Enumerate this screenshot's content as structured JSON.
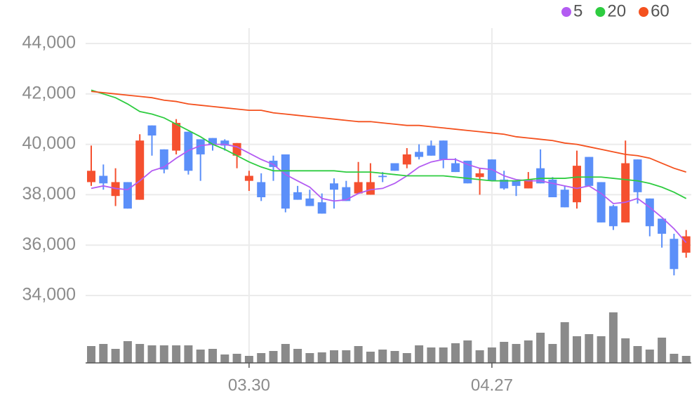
{
  "chart_data": {
    "type": "candlestick",
    "categories": [
      null,
      null,
      null,
      null,
      null,
      null,
      null,
      null,
      null,
      null,
      null,
      null,
      null,
      "03.30",
      null,
      null,
      null,
      null,
      null,
      null,
      null,
      null,
      null,
      null,
      null,
      null,
      null,
      null,
      null,
      null,
      null,
      null,
      null,
      "04.27",
      null,
      null,
      null,
      null,
      null,
      null,
      null,
      null,
      null,
      null,
      null,
      null,
      null,
      null,
      null,
      null
    ],
    "open": [
      38500,
      38750,
      37950,
      38500,
      37800,
      40750,
      39800,
      39750,
      40500,
      40200,
      40250,
      40150,
      39550,
      38550,
      38500,
      39350,
      39600,
      38100,
      37850,
      37700,
      38450,
      38300,
      38050,
      38000,
      38750,
      39250,
      39200,
      39700,
      39950,
      40150,
      39250,
      39350,
      38700,
      39400,
      38600,
      38550,
      38250,
      39050,
      38600,
      38200,
      37700,
      39500,
      38500,
      37550,
      36900,
      39400,
      37850,
      37050,
      36250,
      35700
    ],
    "high": [
      39950,
      39200,
      39050,
      38500,
      40400,
      40750,
      39800,
      41000,
      40500,
      40200,
      40250,
      40200,
      40050,
      38950,
      38850,
      39550,
      39600,
      38350,
      38200,
      38050,
      38650,
      38550,
      39300,
      39250,
      38900,
      39250,
      39850,
      40000,
      40150,
      40150,
      39450,
      39350,
      39050,
      39400,
      38950,
      38550,
      38900,
      39800,
      38700,
      38350,
      39750,
      39500,
      38500,
      37600,
      40150,
      39400,
      37850,
      37050,
      36450,
      36600
    ],
    "low": [
      38350,
      38200,
      37550,
      37450,
      37800,
      39550,
      38850,
      39600,
      38800,
      38550,
      39750,
      39750,
      39050,
      38150,
      37750,
      38550,
      37300,
      37800,
      37550,
      37250,
      37450,
      37750,
      38050,
      38000,
      38500,
      38950,
      39050,
      39400,
      39550,
      39050,
      38900,
      38450,
      38000,
      38550,
      38200,
      37950,
      38250,
      38450,
      37900,
      37500,
      37450,
      38350,
      36900,
      36600,
      36900,
      37650,
      36350,
      35900,
      34800,
      35500
    ],
    "close": [
      38950,
      38450,
      38500,
      37450,
      40150,
      40350,
      39000,
      40850,
      38950,
      39600,
      40000,
      39950,
      40050,
      38750,
      37900,
      39100,
      37450,
      37800,
      37550,
      37250,
      38200,
      37750,
      38500,
      38500,
      38700,
      38950,
      39600,
      39500,
      39550,
      39400,
      38900,
      38450,
      38850,
      38550,
      38250,
      38350,
      38600,
      38450,
      37900,
      37500,
      39150,
      38350,
      36900,
      36750,
      39250,
      38100,
      36750,
      36450,
      35050,
      36350
    ],
    "up_color": "#f5502f",
    "down_color": "#5b8ff9",
    "series": [
      {
        "name": "5",
        "color": "#b35cf2",
        "values": [
          38250,
          38350,
          38250,
          38200,
          38550,
          38950,
          39100,
          39450,
          39750,
          39950,
          40000,
          40000,
          39900,
          39650,
          39400,
          39200,
          38800,
          38550,
          38300,
          37850,
          37750,
          37800,
          38050,
          38200,
          38250,
          38450,
          38750,
          39100,
          39300,
          39400,
          39400,
          39200,
          39050,
          39000,
          38750,
          38600,
          38550,
          38550,
          38450,
          38350,
          38250,
          38350,
          38050,
          37650,
          37700,
          37850,
          37500,
          37100,
          36650,
          36100
        ]
      },
      {
        "name": "20",
        "color": "#2ecc40",
        "values": [
          42150,
          42000,
          41850,
          41600,
          41300,
          41200,
          41050,
          40800,
          40550,
          40300,
          40000,
          39800,
          39550,
          39300,
          39100,
          38950,
          38950,
          38950,
          38950,
          38950,
          38950,
          38900,
          38900,
          38900,
          38850,
          38800,
          38750,
          38750,
          38750,
          38750,
          38700,
          38650,
          38600,
          38550,
          38550,
          38550,
          38600,
          38650,
          38650,
          38650,
          38700,
          38700,
          38700,
          38650,
          38600,
          38550,
          38450,
          38300,
          38100,
          37850
        ]
      },
      {
        "name": "60",
        "color": "#f4511e",
        "values": [
          42100,
          42050,
          42000,
          41950,
          41900,
          41850,
          41750,
          41700,
          41600,
          41550,
          41500,
          41450,
          41400,
          41350,
          41350,
          41250,
          41200,
          41150,
          41100,
          41050,
          41000,
          40950,
          40900,
          40900,
          40850,
          40800,
          40750,
          40750,
          40700,
          40650,
          40600,
          40550,
          40500,
          40450,
          40400,
          40300,
          40250,
          40200,
          40150,
          40050,
          40000,
          39900,
          39800,
          39700,
          39600,
          39550,
          39450,
          39250,
          39050,
          38900
        ]
      }
    ],
    "volume": [
      24,
      27,
      20,
      31,
      27,
      25,
      25,
      25,
      25,
      19,
      20,
      12,
      13,
      10,
      14,
      17,
      27,
      20,
      14,
      15,
      18,
      18,
      24,
      16,
      19,
      17,
      14,
      25,
      22,
      22,
      28,
      32,
      18,
      22,
      30,
      27,
      32,
      43,
      27,
      58,
      38,
      41,
      38,
      72,
      35,
      24,
      19,
      36,
      13,
      10
    ],
    "volume_color": "#8a8a8a",
    "volume_lim": [
      0,
      80
    ],
    "ylim": [
      34000,
      44000
    ],
    "yticks": [
      {
        "value": 34000,
        "label": "34,000"
      },
      {
        "value": 36000,
        "label": "36,000"
      },
      {
        "value": 38000,
        "label": "38,000"
      },
      {
        "value": 40000,
        "label": "40,000"
      },
      {
        "value": 42000,
        "label": "42,000"
      },
      {
        "value": 44000,
        "label": "44,000"
      }
    ],
    "grid": true
  }
}
